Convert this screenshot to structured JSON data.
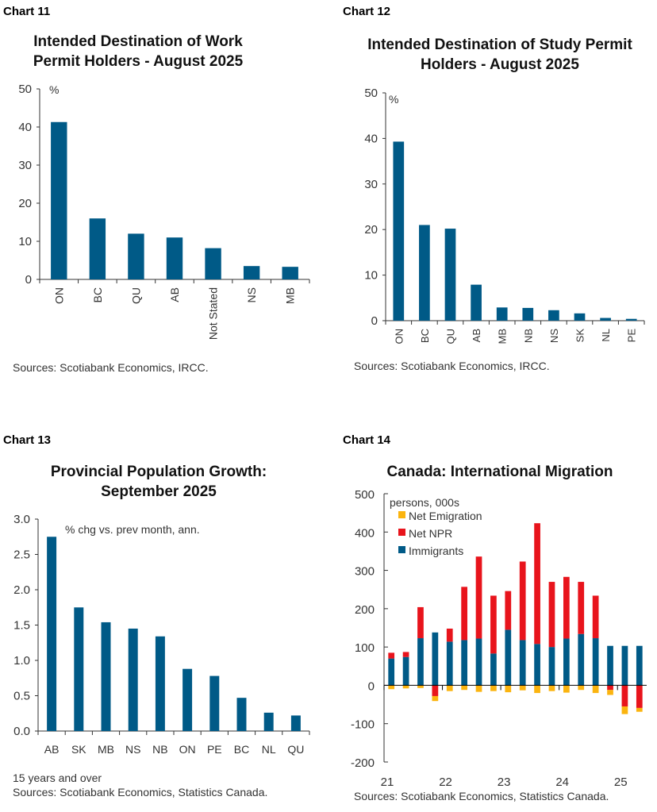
{
  "colors": {
    "bar": "#005a87",
    "npr": "#e8141c",
    "emigration": "#fbb40f",
    "axis": "#333333"
  },
  "chart_data": [
    {
      "label": "Chart 11",
      "type": "bar",
      "title": "Intended Destination of Work Permit Holders - August 2025",
      "unit_label": "%",
      "categories": [
        "ON",
        "BC",
        "QU",
        "AB",
        "Not Stated",
        "NS",
        "MB"
      ],
      "values": [
        41.3,
        16.0,
        12.0,
        11.0,
        8.2,
        3.5,
        3.3
      ],
      "ylim": [
        0,
        50
      ],
      "yticks": [
        "0",
        "10",
        "20",
        "30",
        "40",
        "50"
      ],
      "source": "Sources: Scotiabank Economics, IRCC."
    },
    {
      "label": "Chart 12",
      "type": "bar",
      "title": "Intended Destination of Study Permit Holders - August 2025",
      "unit_label": "%",
      "categories": [
        "ON",
        "BC",
        "QU",
        "AB",
        "MB",
        "NB",
        "NS",
        "SK",
        "NL",
        "PE"
      ],
      "values": [
        39.3,
        21.0,
        20.2,
        7.9,
        2.9,
        2.8,
        2.3,
        1.6,
        0.6,
        0.4
      ],
      "ylim": [
        0,
        50
      ],
      "yticks": [
        "0",
        "10",
        "20",
        "30",
        "40",
        "50"
      ],
      "source": "Sources: Scotiabank Economics, IRCC."
    },
    {
      "label": "Chart 13",
      "type": "bar",
      "title": "Provincial Population Growth: September 2025",
      "unit_label": "% chg vs. prev month, ann.",
      "categories": [
        "AB",
        "SK",
        "MB",
        "NS",
        "NB",
        "ON",
        "PE",
        "BC",
        "NL",
        "QU"
      ],
      "values": [
        2.75,
        1.75,
        1.54,
        1.45,
        1.34,
        0.88,
        0.78,
        0.47,
        0.26,
        0.22
      ],
      "ylim": [
        0,
        3
      ],
      "yticks": [
        "0.0",
        "0.5",
        "1.0",
        "1.5",
        "2.0",
        "2.5",
        "3.0"
      ],
      "note": "15 years and over",
      "source": "Sources: Scotiabank Economics, Statistics Canada."
    },
    {
      "label": "Chart 14",
      "type": "bar",
      "stacked": true,
      "title": "Canada: International Migration",
      "unit_label": "persons, 000s",
      "ylim": [
        -200,
        500
      ],
      "yticks": [
        "-200",
        "-100",
        "0",
        "100",
        "200",
        "300",
        "400",
        "500"
      ],
      "x": [
        "21Q1",
        "21Q2",
        "21Q3",
        "21Q4",
        "22Q1",
        "22Q2",
        "22Q3",
        "22Q4",
        "23Q1",
        "23Q2",
        "23Q3",
        "23Q4",
        "24Q1",
        "24Q2",
        "24Q3",
        "24Q4",
        "25Q1",
        "25Q2"
      ],
      "xticks": [
        "21",
        "22",
        "23",
        "24",
        "25"
      ],
      "series": [
        {
          "name": "Net Emigration",
          "values": [
            -10,
            -8,
            -7,
            -13,
            -15,
            -12,
            -17,
            -15,
            -18,
            -13,
            -20,
            -15,
            -19,
            -12,
            -20,
            -13,
            -20,
            -10
          ]
        },
        {
          "name": "Net NPR",
          "values": [
            15,
            13,
            81,
            -28,
            34,
            139,
            214,
            151,
            101,
            205,
            315,
            170,
            161,
            136,
            111,
            -12,
            -55,
            -59
          ]
        },
        {
          "name": "Immigrants",
          "values": [
            70,
            74,
            123,
            138,
            114,
            118,
            122,
            83,
            145,
            118,
            108,
            100,
            122,
            134,
            123,
            103,
            103,
            103
          ]
        }
      ],
      "legend": "top-left",
      "source": "Sources: Scotiabank Economics, Statistics Canada."
    }
  ]
}
